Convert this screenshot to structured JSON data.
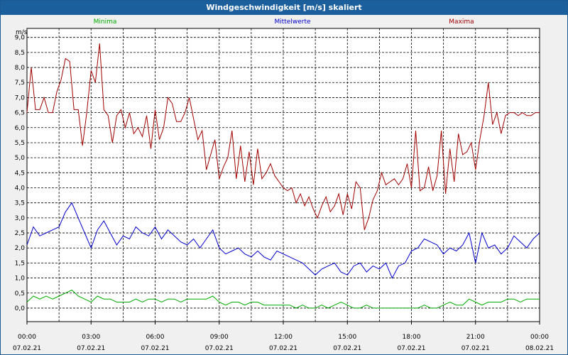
{
  "window_title": "Windgeschwindigkeit [m/s] skaliert",
  "chart_data": {
    "type": "line",
    "title": "Windgeschwindigkeit [m/s] skaliert",
    "ylabel": "m/s",
    "ylim": [
      -0.45,
      9.3
    ],
    "xlim": [
      0,
      24
    ],
    "y_ticks": [
      "9,0",
      "8,5",
      "8,0",
      "7,5",
      "7,0",
      "6,5",
      "6,0",
      "5,5",
      "5,0",
      "4,5",
      "4,0",
      "3,5",
      "3,0",
      "2,5",
      "2,0",
      "1,5",
      "1,0",
      "0,5",
      "0,0"
    ],
    "y_tick_values": [
      9,
      8.5,
      8,
      7.5,
      7,
      6.5,
      6,
      5.5,
      5,
      4.5,
      4,
      3.5,
      3,
      2.5,
      2,
      1.5,
      1,
      0.5,
      0
    ],
    "x_ticks": [
      {
        "time": "00:00",
        "date": "07.02.21",
        "h": 0
      },
      {
        "time": "03:00",
        "date": "07.02.21",
        "h": 3
      },
      {
        "time": "06:00",
        "date": "07.02.21",
        "h": 6
      },
      {
        "time": "09:00",
        "date": "07.02.21",
        "h": 9
      },
      {
        "time": "12:00",
        "date": "07.02.21",
        "h": 12
      },
      {
        "time": "15:00",
        "date": "07.02.21",
        "h": 15
      },
      {
        "time": "18:00",
        "date": "07.02.21",
        "h": 18
      },
      {
        "time": "21:00",
        "date": "07.02.21",
        "h": 21
      },
      {
        "time": "00:00",
        "date": "08.02.21",
        "h": 24
      }
    ],
    "grid": true,
    "series": [
      {
        "name": "Minima",
        "color": "#00aa00",
        "x": [
          0,
          0.3,
          0.6,
          0.9,
          1.2,
          1.5,
          1.8,
          2.1,
          2.4,
          2.7,
          3,
          3.3,
          3.6,
          3.9,
          4.2,
          4.5,
          4.8,
          5.1,
          5.4,
          5.7,
          6,
          6.3,
          6.6,
          6.9,
          7.2,
          7.5,
          7.8,
          8.1,
          8.4,
          8.7,
          9,
          9.3,
          9.6,
          9.9,
          10.2,
          10.5,
          10.8,
          11.1,
          11.4,
          11.7,
          12,
          12.3,
          12.6,
          12.9,
          13.2,
          13.5,
          13.8,
          14.1,
          14.4,
          14.7,
          15,
          15.3,
          15.6,
          15.9,
          16.2,
          16.5,
          16.8,
          17.1,
          17.4,
          17.7,
          18,
          18.3,
          18.6,
          18.9,
          19.2,
          19.5,
          19.8,
          20.1,
          20.4,
          20.7,
          21,
          21.3,
          21.6,
          21.9,
          22.2,
          22.5,
          22.8,
          23.1,
          23.4,
          23.7,
          24
        ],
        "values": [
          0.2,
          0.4,
          0.3,
          0.4,
          0.3,
          0.4,
          0.5,
          0.6,
          0.4,
          0.3,
          0.2,
          0.4,
          0.3,
          0.3,
          0.2,
          0.2,
          0.2,
          0.3,
          0.2,
          0.3,
          0.3,
          0.2,
          0.3,
          0.3,
          0.2,
          0.3,
          0.3,
          0.3,
          0.3,
          0.4,
          0.2,
          0.1,
          0.2,
          0.2,
          0.1,
          0.2,
          0.2,
          0.1,
          0.1,
          0.1,
          0.1,
          0.1,
          0,
          0.1,
          0,
          0,
          0.1,
          0,
          0.1,
          0.2,
          0.1,
          0,
          0,
          0.1,
          0,
          0,
          0,
          0,
          0,
          0,
          0,
          0,
          0.1,
          0,
          0,
          0.1,
          0.2,
          0.1,
          0.1,
          0.3,
          0.2,
          0.1,
          0.2,
          0.2,
          0.2,
          0.3,
          0.3,
          0.2,
          0.3,
          0.3,
          0.3
        ]
      },
      {
        "name": "Mittelwerte",
        "color": "#0000cc",
        "x": [
          0,
          0.3,
          0.6,
          0.9,
          1.2,
          1.5,
          1.8,
          2.1,
          2.4,
          2.7,
          3,
          3.3,
          3.6,
          3.9,
          4.2,
          4.5,
          4.8,
          5.1,
          5.4,
          5.7,
          6,
          6.3,
          6.6,
          6.9,
          7.2,
          7.5,
          7.8,
          8.1,
          8.4,
          8.7,
          9,
          9.3,
          9.6,
          9.9,
          10.2,
          10.5,
          10.8,
          11.1,
          11.4,
          11.7,
          12,
          12.3,
          12.6,
          12.9,
          13.2,
          13.5,
          13.8,
          14.1,
          14.4,
          14.7,
          15,
          15.3,
          15.6,
          15.9,
          16.2,
          16.5,
          16.8,
          17.1,
          17.4,
          17.7,
          18,
          18.3,
          18.6,
          18.9,
          19.2,
          19.5,
          19.8,
          20.1,
          20.4,
          20.7,
          21,
          21.3,
          21.6,
          21.9,
          22.2,
          22.5,
          22.8,
          23.1,
          23.4,
          23.7,
          24
        ],
        "values": [
          2.1,
          2.7,
          2.4,
          2.5,
          2.6,
          2.7,
          3.2,
          3.5,
          3.0,
          2.5,
          2.0,
          2.6,
          2.9,
          2.5,
          2.1,
          2.4,
          2.3,
          2.7,
          2.5,
          2.4,
          2.7,
          2.3,
          2.6,
          2.4,
          2.2,
          2.1,
          2.3,
          2.0,
          2.3,
          2.6,
          2.0,
          1.8,
          1.9,
          2.0,
          1.8,
          1.7,
          1.9,
          1.7,
          1.6,
          1.9,
          1.8,
          1.7,
          1.6,
          1.5,
          1.3,
          1.1,
          1.3,
          1.4,
          1.5,
          1.2,
          1.1,
          1.4,
          1.5,
          1.2,
          1.4,
          1.3,
          1.5,
          1.0,
          1.4,
          1.5,
          1.9,
          2.0,
          2.3,
          2.2,
          2.1,
          1.8,
          2.0,
          1.9,
          2.1,
          2.5,
          1.5,
          2.5,
          2.0,
          2.1,
          1.8,
          2.0,
          2.4,
          2.2,
          2.0,
          2.3,
          2.5
        ]
      },
      {
        "name": "Maxima",
        "color": "#a00000",
        "x": [
          0,
          0.2,
          0.4,
          0.6,
          0.8,
          1.0,
          1.2,
          1.4,
          1.6,
          1.8,
          2.0,
          2.2,
          2.4,
          2.6,
          2.8,
          3.0,
          3.2,
          3.4,
          3.6,
          3.8,
          4.0,
          4.2,
          4.4,
          4.6,
          4.8,
          5.0,
          5.2,
          5.4,
          5.6,
          5.8,
          6.0,
          6.2,
          6.4,
          6.6,
          6.8,
          7.0,
          7.2,
          7.4,
          7.6,
          7.8,
          8.0,
          8.2,
          8.4,
          8.6,
          8.8,
          9.0,
          9.2,
          9.4,
          9.6,
          9.8,
          10.0,
          10.2,
          10.4,
          10.6,
          10.8,
          11.0,
          11.2,
          11.4,
          11.6,
          11.8,
          12.0,
          12.2,
          12.4,
          12.6,
          12.8,
          13.0,
          13.2,
          13.4,
          13.6,
          13.8,
          14.0,
          14.2,
          14.4,
          14.6,
          14.8,
          15.0,
          15.2,
          15.4,
          15.6,
          15.8,
          16.0,
          16.2,
          16.4,
          16.6,
          16.8,
          17.0,
          17.2,
          17.4,
          17.6,
          17.8,
          18.0,
          18.2,
          18.4,
          18.6,
          18.8,
          19.0,
          19.2,
          19.4,
          19.6,
          19.8,
          20.0,
          20.2,
          20.4,
          20.6,
          20.8,
          21.0,
          21.2,
          21.4,
          21.6,
          21.8,
          22.0,
          22.2,
          22.4,
          22.6,
          22.8,
          23.0,
          23.2,
          23.4,
          23.6,
          23.8,
          24.0
        ],
        "values": [
          6.5,
          8.0,
          6.6,
          6.6,
          7.0,
          6.5,
          6.5,
          7.2,
          7.6,
          8.3,
          8.2,
          6.6,
          6.6,
          5.4,
          6.5,
          7.9,
          7.5,
          8.8,
          6.6,
          6.4,
          5.5,
          6.4,
          6.6,
          6.0,
          6.5,
          5.8,
          6.0,
          5.7,
          6.4,
          5.3,
          6.6,
          5.6,
          6.0,
          7.0,
          6.8,
          6.2,
          6.2,
          6.5,
          7.0,
          6.3,
          5.6,
          5.9,
          4.6,
          5.1,
          5.6,
          4.3,
          4.7,
          5.0,
          5.9,
          4.3,
          5.4,
          4.2,
          5.2,
          4.1,
          5.3,
          4.3,
          4.5,
          4.8,
          4.4,
          4.2,
          4.0,
          3.9,
          4.0,
          3.5,
          3.8,
          3.4,
          3.7,
          3.3,
          3.0,
          3.4,
          3.7,
          3.2,
          3.4,
          3.8,
          3.1,
          3.8,
          3.3,
          4.2,
          4.0,
          2.6,
          3.0,
          3.6,
          3.9,
          4.5,
          4.1,
          4.2,
          4.3,
          4.1,
          4.3,
          4.8,
          4.0,
          5.9,
          3.9,
          4.0,
          4.7,
          3.9,
          4.4,
          5.9,
          3.8,
          5.3,
          4.2,
          5.8,
          5.1,
          5.2,
          5.5,
          4.6,
          5.6,
          6.4,
          7.5,
          6.1,
          6.5,
          5.8,
          6.4,
          6.5,
          6.5,
          6.4,
          6.5,
          6.4,
          6.4,
          6.5,
          6.5
        ]
      }
    ]
  }
}
